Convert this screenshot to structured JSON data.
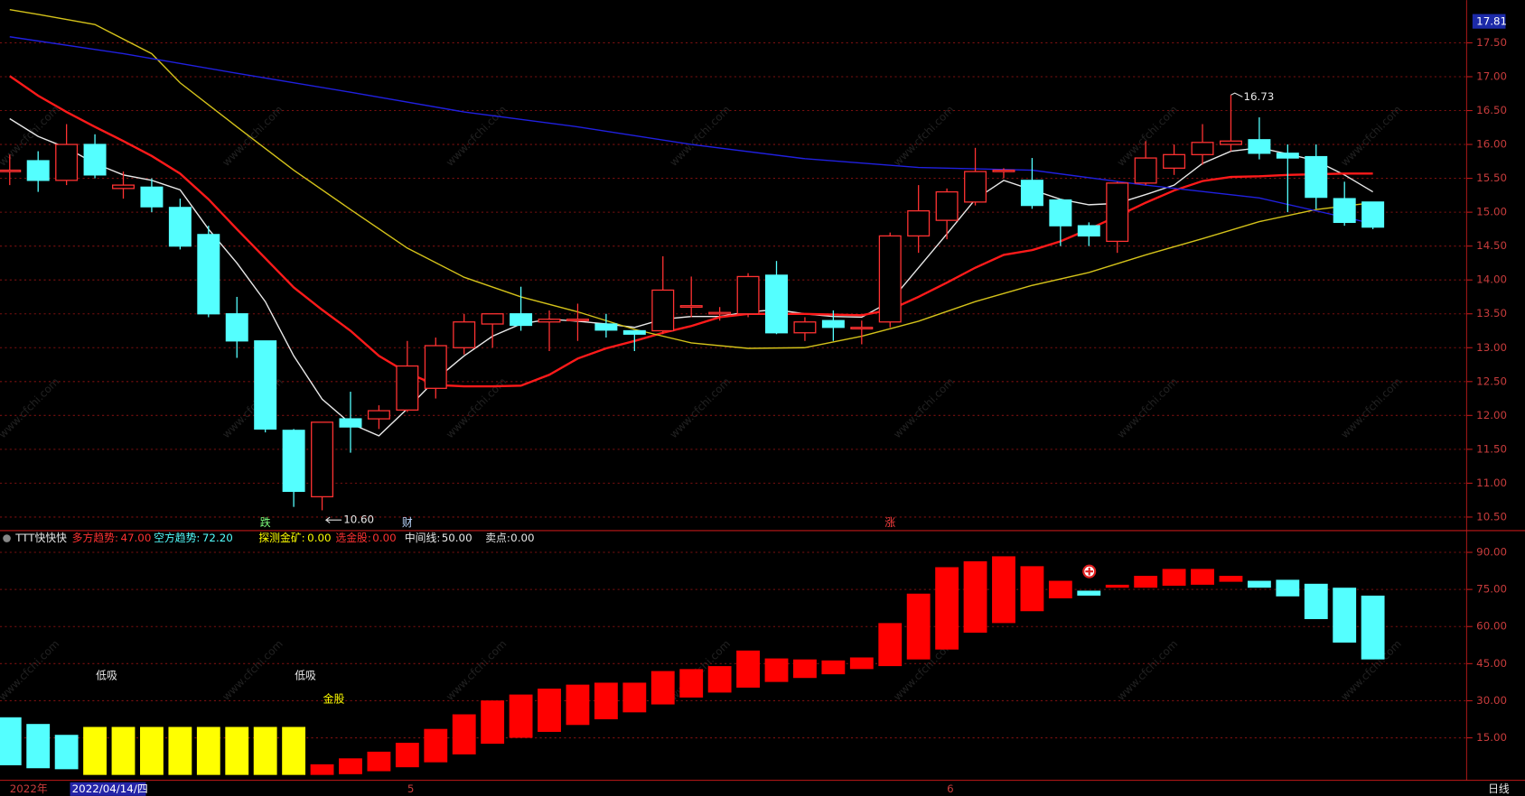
{
  "chart_data": [
    {
      "type": "candlestick",
      "open": [
        15.6,
        15.76,
        15.47,
        16.0,
        15.35,
        15.37,
        15.07,
        14.67,
        13.5,
        13.1,
        11.78,
        10.8,
        11.95,
        11.95,
        12.08,
        12.4,
        13.0,
        13.35,
        13.5,
        13.38,
        13.4,
        13.35,
        13.25,
        13.25,
        13.6,
        13.5,
        13.5,
        14.07,
        13.22,
        13.4,
        13.28,
        13.38,
        14.65,
        14.88,
        15.15,
        15.6,
        15.47,
        15.18,
        14.8,
        14.57,
        15.43,
        15.65,
        15.85,
        16.0,
        16.07,
        15.87,
        15.82,
        15.2,
        15.15
      ],
      "close": [
        15.62,
        15.47,
        16.0,
        15.55,
        15.4,
        15.08,
        14.5,
        13.5,
        13.1,
        11.8,
        10.88,
        11.9,
        11.83,
        12.07,
        12.73,
        13.03,
        13.38,
        13.5,
        13.33,
        13.42,
        13.42,
        13.26,
        13.2,
        13.85,
        13.62,
        13.52,
        14.05,
        13.22,
        13.38,
        13.3,
        13.3,
        14.65,
        15.02,
        15.3,
        15.6,
        15.62,
        15.1,
        14.8,
        14.65,
        15.43,
        15.8,
        15.85,
        16.03,
        16.05,
        15.87,
        15.8,
        15.22,
        14.85,
        14.78
      ],
      "high": [
        15.85,
        15.9,
        16.3,
        16.15,
        15.6,
        15.5,
        15.2,
        14.8,
        13.75,
        13.1,
        11.8,
        11.9,
        12.35,
        12.15,
        13.1,
        13.15,
        13.5,
        13.5,
        13.9,
        13.55,
        13.65,
        13.5,
        13.25,
        14.35,
        14.05,
        13.6,
        14.1,
        14.28,
        13.45,
        13.55,
        13.4,
        14.7,
        15.4,
        15.35,
        15.95,
        15.65,
        15.8,
        15.2,
        14.85,
        15.45,
        16.05,
        16.0,
        16.3,
        16.73,
        16.4,
        16.0,
        16.0,
        15.45,
        15.15
      ],
      "low": [
        15.4,
        15.3,
        15.4,
        15.5,
        15.2,
        15.0,
        14.45,
        13.45,
        12.85,
        11.75,
        10.65,
        10.6,
        11.45,
        11.8,
        12.05,
        12.25,
        12.9,
        13.0,
        13.25,
        12.95,
        13.1,
        13.15,
        12.95,
        13.2,
        13.45,
        13.4,
        13.45,
        13.2,
        13.1,
        13.1,
        13.05,
        13.3,
        14.4,
        14.6,
        15.1,
        15.5,
        15.05,
        14.5,
        14.5,
        14.4,
        15.4,
        15.55,
        15.7,
        15.9,
        15.78,
        15.0,
        15.05,
        14.8,
        14.75
      ],
      "up_color": "#ff3232",
      "down_color": "#54ffff",
      "series": [
        {
          "color": "#e8e8e8",
          "x": [
            0,
            1,
            2,
            3,
            4,
            5,
            6,
            7,
            8,
            9,
            10,
            11,
            12,
            13,
            14,
            15,
            16,
            17,
            18,
            19,
            20,
            21,
            22,
            23,
            24,
            25,
            26,
            27,
            28,
            29,
            30,
            31,
            32,
            33,
            34,
            35,
            36,
            37,
            38,
            39,
            40,
            41,
            42,
            43,
            44,
            45,
            46,
            47,
            48
          ],
          "values": [
            16.38,
            16.12,
            15.95,
            15.72,
            15.55,
            15.47,
            15.33,
            14.75,
            14.25,
            13.68,
            12.88,
            12.24,
            11.88,
            11.7,
            12.1,
            12.53,
            12.88,
            13.17,
            13.35,
            13.42,
            13.39,
            13.35,
            13.3,
            13.42,
            13.46,
            13.46,
            13.53,
            13.56,
            13.5,
            13.46,
            13.45,
            13.68,
            14.18,
            14.68,
            15.19,
            15.47,
            15.33,
            15.19,
            15.11,
            15.13,
            15.26,
            15.4,
            15.72,
            15.9,
            15.95,
            15.86,
            15.76,
            15.55,
            15.3
          ]
        },
        {
          "color": "#ff1a1a",
          "x": [
            0,
            1,
            2,
            3,
            4,
            5,
            6,
            7,
            8,
            9,
            10,
            11,
            12,
            13,
            14,
            15,
            16,
            17,
            18,
            19,
            20,
            21,
            22,
            23,
            24,
            25,
            26,
            27,
            28,
            29,
            30,
            31,
            32,
            33,
            34,
            35,
            36,
            37,
            38,
            39,
            40,
            41,
            42,
            43,
            44,
            45,
            46,
            47,
            48
          ],
          "values": [
            17.01,
            16.72,
            16.48,
            16.26,
            16.05,
            15.83,
            15.57,
            15.19,
            14.75,
            14.32,
            13.89,
            13.56,
            13.25,
            12.88,
            12.63,
            12.45,
            12.43,
            12.43,
            12.44,
            12.6,
            12.84,
            12.99,
            13.1,
            13.22,
            13.32,
            13.45,
            13.5,
            13.5,
            13.5,
            13.49,
            13.48,
            13.56,
            13.75,
            13.96,
            14.18,
            14.37,
            14.44,
            14.57,
            14.75,
            14.94,
            15.14,
            15.32,
            15.46,
            15.52,
            15.53,
            15.55,
            15.56,
            15.57,
            15.57
          ]
        },
        {
          "color": "#d4c21a",
          "x": [
            0,
            1,
            3,
            5,
            6,
            8,
            10,
            12,
            14,
            16,
            18,
            20,
            22,
            24,
            26,
            28,
            30,
            32,
            34,
            36,
            38,
            40,
            42,
            44,
            46,
            48
          ],
          "values": [
            17.99,
            17.92,
            17.77,
            17.34,
            16.91,
            16.26,
            15.62,
            15.04,
            14.47,
            14.04,
            13.75,
            13.53,
            13.27,
            13.07,
            12.99,
            13.0,
            13.17,
            13.39,
            13.68,
            13.92,
            14.11,
            14.37,
            14.61,
            14.86,
            15.04,
            15.14
          ]
        },
        {
          "color": "#2020e0",
          "x": [
            0,
            4,
            8,
            12,
            16,
            20,
            24,
            28,
            32,
            36,
            40,
            44,
            48
          ],
          "values": [
            17.59,
            17.34,
            17.05,
            16.77,
            16.48,
            16.26,
            16.0,
            15.79,
            15.66,
            15.62,
            15.4,
            15.21,
            14.83
          ]
        }
      ],
      "ylim": [
        10.3,
        18.13
      ],
      "yticks": [
        {
          "value": 10.5,
          "label": "10.50"
        },
        {
          "value": 11,
          "label": "11.00"
        },
        {
          "value": 11.5,
          "label": "11.50"
        },
        {
          "value": 12,
          "label": "12.00"
        },
        {
          "value": 12.5,
          "label": "12.50"
        },
        {
          "value": 13,
          "label": "13.00"
        },
        {
          "value": 13.5,
          "label": "13.50"
        },
        {
          "value": 14,
          "label": "14.00"
        },
        {
          "value": 14.5,
          "label": "14.50"
        },
        {
          "value": 15,
          "label": "15.00"
        },
        {
          "value": 15.5,
          "label": "15.50"
        },
        {
          "value": 16,
          "label": "16.00"
        },
        {
          "value": 16.5,
          "label": "16.50"
        },
        {
          "value": 17,
          "label": "17.00"
        },
        {
          "value": 17.5,
          "label": "17.50"
        }
      ],
      "grid": true,
      "top_price": 17.81,
      "low_annotation": {
        "value": 10.6,
        "label": "10.60"
      },
      "high_annotation": 16.73,
      "signals": [
        null,
        null,
        null,
        null,
        null,
        null,
        null,
        null,
        null,
        {
          "label": "跌",
          "color": "#7dff7d"
        },
        null,
        null,
        null,
        null,
        {
          "label": "财",
          "color": "#bcd8ff"
        },
        null,
        null,
        null,
        null,
        null,
        null,
        null,
        null,
        null,
        null,
        null,
        null,
        null,
        null,
        null,
        null,
        {
          "label": "涨",
          "color": "#ff4040"
        },
        null,
        null,
        null,
        null,
        null,
        null,
        null,
        null,
        null,
        null,
        null,
        null,
        null,
        null,
        null,
        null,
        null
      ]
    },
    {
      "type": "floating-bar",
      "title": "TTT快快快",
      "legend": [
        {
          "name": "多方趋势:",
          "value": {
            "value": 47,
            "label": "47.00"
          },
          "color": "#ff3232"
        },
        {
          "name": "空方趋势:",
          "value": {
            "value": 72.2,
            "label": "72.20"
          },
          "color": "#54ffff"
        },
        {
          "name": "探测金矿:",
          "value": {
            "value": 0,
            "label": "0.00"
          },
          "color": "#ffff00"
        },
        {
          "name": "选金股:",
          "value": {
            "value": 0,
            "label": "0.00"
          },
          "color": "#ff3232"
        },
        {
          "name": "中间线:",
          "value": {
            "value": 50,
            "label": "50.00"
          },
          "color": "#e8e8e8"
        },
        {
          "name": "卖点:",
          "value": {
            "value": 0,
            "label": "0.00"
          },
          "color": "#e8e8e8"
        }
      ],
      "low": [
        3.9,
        2.7,
        2.3,
        0,
        0,
        0,
        0,
        0,
        0,
        0,
        0,
        0,
        0.3,
        1.5,
        3.1,
        5.1,
        8.3,
        12.6,
        15,
        17.4,
        20.2,
        22.5,
        25.3,
        28.5,
        31.3,
        33.3,
        35.3,
        37.6,
        39.2,
        40.7,
        42.8,
        44,
        46.7,
        50.7,
        57.5,
        61.4,
        66.2,
        71.4,
        72.5,
        75.7,
        75.7,
        76.5,
        76.9,
        78.1,
        75.7,
        72.2,
        63,
        53.5,
        46.7
      ],
      "high": [
        23.3,
        20.6,
        16.2,
        19.4,
        19.4,
        19.4,
        19.4,
        19.4,
        19.4,
        19.4,
        19.4,
        4.3,
        6.7,
        9.4,
        13,
        18.6,
        24.5,
        30.1,
        32.5,
        34.9,
        36.5,
        37.3,
        37.3,
        42,
        42.8,
        44,
        50.3,
        47.1,
        46.7,
        46.3,
        47.5,
        61.4,
        73.3,
        84,
        86.4,
        88.4,
        84.4,
        78.5,
        74.5,
        76.9,
        80.5,
        83.3,
        83.3,
        80.5,
        78.5,
        78.9,
        77.3,
        75.7,
        72.5
      ],
      "colors": [
        "#54ffff",
        "#54ffff",
        "#54ffff",
        "#ffff00",
        "#ffff00",
        "#ffff00",
        "#ffff00",
        "#ffff00",
        "#ffff00",
        "#ffff00",
        "#ffff00",
        "#ff0000",
        "#ff0000",
        "#ff0000",
        "#ff0000",
        "#ff0000",
        "#ff0000",
        "#ff0000",
        "#ff0000",
        "#ff0000",
        "#ff0000",
        "#ff0000",
        "#ff0000",
        "#ff0000",
        "#ff0000",
        "#ff0000",
        "#ff0000",
        "#ff0000",
        "#ff0000",
        "#ff0000",
        "#ff0000",
        "#ff0000",
        "#ff0000",
        "#ff0000",
        "#ff0000",
        "#ff0000",
        "#ff0000",
        "#ff0000",
        "#54ffff",
        "#ff0000",
        "#ff0000",
        "#ff0000",
        "#ff0000",
        "#ff0000",
        "#54ffff",
        "#54ffff",
        "#54ffff",
        "#54ffff",
        "#54ffff"
      ],
      "ylim": [
        -1,
        98
      ],
      "yticks": [
        {
          "value": 15,
          "label": "15.00"
        },
        {
          "value": 30,
          "label": "30.00"
        },
        {
          "value": 45,
          "label": "45.00"
        },
        {
          "value": 60,
          "label": "60.00"
        },
        {
          "value": 75,
          "label": "75.00"
        },
        {
          "value": 90,
          "label": "90.00"
        }
      ],
      "grid": true,
      "notes": [
        null,
        null,
        null,
        {
          "label": "低吸",
          "value": 40
        },
        null,
        null,
        null,
        null,
        null,
        null,
        {
          "label": "低吸",
          "value": 40
        },
        {
          "label": "金股",
          "value": 30.5
        },
        null,
        null,
        null,
        null,
        null,
        null,
        null,
        null,
        null,
        null,
        null,
        null,
        null,
        null,
        null,
        null,
        null,
        null,
        null,
        null,
        null,
        null,
        null,
        null,
        null,
        null,
        null,
        null,
        null,
        null,
        null,
        null,
        null,
        null,
        null,
        null,
        null
      ]
    }
  ],
  "x_axis": {
    "labels": [
      "2022年",
      null,
      null,
      null,
      null,
      null,
      null,
      null,
      null,
      null,
      null,
      null,
      null,
      null,
      "5",
      null,
      null,
      null,
      null,
      null,
      null,
      null,
      null,
      null,
      null,
      null,
      null,
      null,
      null,
      null,
      null,
      null,
      null,
      "6",
      null,
      null,
      null,
      null,
      null,
      null,
      null,
      null,
      null,
      null,
      null,
      null,
      null,
      null,
      null
    ],
    "cursor_date": "2022/04/14/四",
    "period": "日线"
  },
  "watermark": "www.cfchi.com"
}
